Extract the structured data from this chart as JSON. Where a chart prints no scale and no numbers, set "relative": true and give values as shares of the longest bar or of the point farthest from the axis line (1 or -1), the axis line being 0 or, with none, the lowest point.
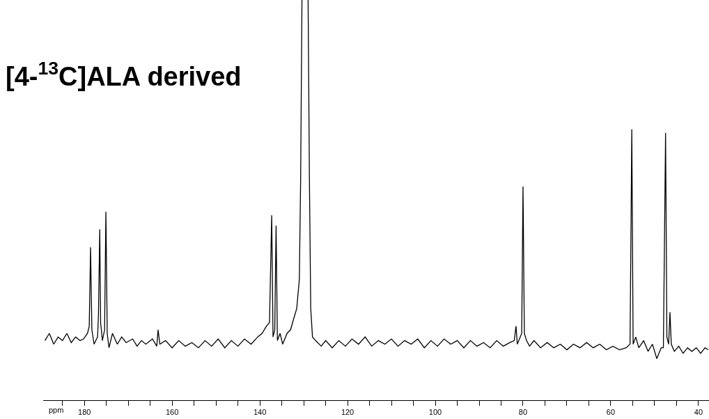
{
  "chart_data": {
    "type": "line",
    "title": "[4-$^{13}$C]ALA derived",
    "xlabel": "ppm",
    "relative": true,
    "marker": "none",
    "line_style": "solid",
    "xlim": [
      189.4,
      37.6
    ],
    "xticks": [
      {
        "value": 185,
        "label": null
      },
      180,
      {
        "value": 175,
        "label": null
      },
      {
        "value": 170,
        "label": null
      },
      {
        "value": 165,
        "label": null
      },
      160,
      {
        "value": 155,
        "label": null
      },
      {
        "value": 150,
        "label": null
      },
      {
        "value": 145,
        "label": null
      },
      140,
      {
        "value": 135,
        "label": null
      },
      {
        "value": 130,
        "label": null
      },
      {
        "value": 125,
        "label": null
      },
      120,
      {
        "value": 115,
        "label": null
      },
      {
        "value": 110,
        "label": null
      },
      {
        "value": 105,
        "label": null
      },
      100,
      {
        "value": 95,
        "label": null
      },
      {
        "value": 90,
        "label": null
      },
      {
        "value": 85,
        "label": null
      },
      80,
      {
        "value": 75,
        "label": null
      },
      {
        "value": 70,
        "label": null
      },
      {
        "value": 65,
        "label": null
      },
      60,
      {
        "value": 55,
        "label": null
      },
      {
        "value": 50,
        "label": null
      },
      {
        "value": 45,
        "label": null
      },
      40
    ],
    "series": [
      {
        "color": "#000000",
        "x": [
          189.0,
          188,
          187,
          186,
          185,
          184,
          183,
          182,
          181,
          180.2,
          179.3,
          178.9,
          178.6,
          178.3,
          177.8,
          177.0,
          176.8,
          176.5,
          176.3,
          175.9,
          175.4,
          175.1,
          174.8,
          174.4,
          173.6,
          172.5,
          171.5,
          170.5,
          169,
          168,
          167,
          166,
          164.5,
          163.5,
          163.2,
          162.8,
          161.5,
          160,
          158.5,
          157,
          155.5,
          154,
          152.5,
          151,
          149.5,
          148,
          146.5,
          145,
          143.5,
          142,
          140.5,
          139.5,
          138.5,
          137.8,
          137.3,
          137.0,
          136.6,
          136.3,
          136.0,
          135.4,
          134.8,
          133.8,
          133,
          132.3,
          131.6,
          131.0,
          130.7,
          130.4,
          129.7,
          129.0,
          128.7,
          128.4,
          128.0,
          127.3,
          126,
          125,
          123.5,
          122,
          120.5,
          119,
          117.5,
          116,
          114.5,
          113,
          111.5,
          110,
          108.5,
          107,
          105.5,
          104,
          102.5,
          101,
          99.5,
          98,
          96.5,
          95,
          93.5,
          92,
          90.5,
          89,
          87.5,
          86,
          84.5,
          83,
          82,
          81.6,
          81.3,
          80.3,
          80.0,
          79.7,
          79.2,
          78.5,
          77.5,
          76,
          74.5,
          73,
          71.5,
          70,
          68.5,
          67,
          65.5,
          64,
          62.5,
          61,
          59.5,
          58,
          56.5,
          55.6,
          55.2,
          54.9,
          54.3,
          53.6,
          52.5,
          51.5,
          50.5,
          49.5,
          48.5,
          48.0,
          47.5,
          47.2,
          46.8,
          46.5,
          46.2,
          45.5,
          44.5,
          43.5,
          42.5,
          41.5,
          40.5,
          39.5,
          38.5,
          37.8
        ],
        "values": [
          0.149,
          0.167,
          0.14,
          0.158,
          0.149,
          0.167,
          0.144,
          0.158,
          0.149,
          0.153,
          0.167,
          0.185,
          0.382,
          0.176,
          0.14,
          0.158,
          0.212,
          0.427,
          0.194,
          0.149,
          0.176,
          0.471,
          0.167,
          0.131,
          0.167,
          0.14,
          0.158,
          0.144,
          0.153,
          0.135,
          0.149,
          0.14,
          0.153,
          0.135,
          0.176,
          0.14,
          0.149,
          0.131,
          0.149,
          0.135,
          0.144,
          0.131,
          0.149,
          0.135,
          0.153,
          0.131,
          0.149,
          0.135,
          0.153,
          0.14,
          0.158,
          0.167,
          0.185,
          0.194,
          0.462,
          0.158,
          0.176,
          0.436,
          0.149,
          0.167,
          0.14,
          0.167,
          0.176,
          0.203,
          0.229,
          0.301,
          0.552,
          1.0,
          null,
          1.0,
          0.552,
          0.229,
          0.158,
          0.149,
          0.135,
          0.149,
          0.131,
          0.149,
          0.135,
          0.153,
          0.14,
          0.158,
          0.135,
          0.149,
          0.14,
          0.153,
          0.135,
          0.149,
          0.14,
          0.153,
          0.131,
          0.149,
          0.135,
          0.153,
          0.14,
          0.149,
          0.131,
          0.149,
          0.135,
          0.144,
          0.131,
          0.149,
          0.135,
          0.144,
          0.149,
          0.185,
          0.14,
          0.167,
          0.534,
          0.167,
          0.149,
          0.135,
          0.149,
          0.131,
          0.144,
          0.131,
          0.14,
          0.126,
          0.14,
          0.131,
          0.144,
          0.131,
          0.14,
          0.126,
          0.135,
          0.126,
          0.131,
          0.14,
          0.677,
          0.14,
          0.158,
          0.131,
          0.149,
          0.122,
          0.14,
          0.104,
          0.131,
          0.131,
          0.668,
          0.158,
          0.14,
          0.22,
          0.14,
          0.122,
          0.135,
          0.117,
          0.131,
          0.122,
          0.131,
          0.117,
          0.131,
          0.126
        ]
      }
    ]
  }
}
